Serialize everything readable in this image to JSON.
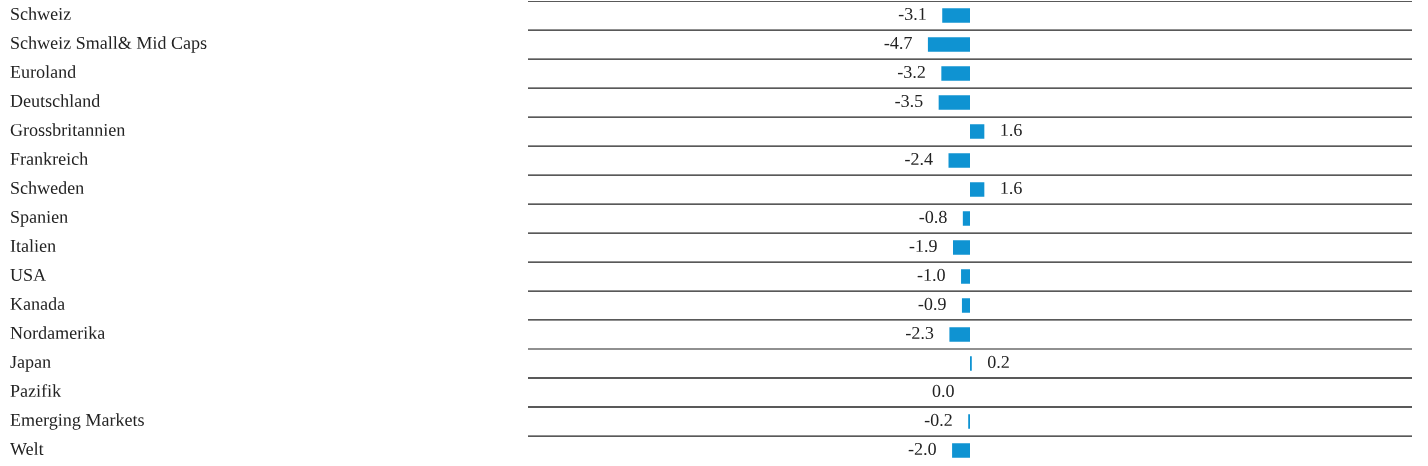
{
  "chart_data": {
    "type": "bar",
    "orientation": "horizontal",
    "categories": [
      "Schweiz",
      "Schweiz Small& Mid Caps",
      "Euroland",
      "Deutschland",
      "Grossbritannien",
      "Frankreich",
      "Schweden",
      "Spanien",
      "Italien",
      "USA",
      "Kanada",
      "Nordamerika",
      "Japan",
      "Pazifik",
      "Emerging Markets",
      "Welt"
    ],
    "values": [
      -3.1,
      -4.7,
      -3.2,
      -3.5,
      1.6,
      -2.4,
      1.6,
      -0.8,
      -1.9,
      -1.0,
      -0.9,
      -2.3,
      0.2,
      0.0,
      -0.2,
      -2.0
    ],
    "value_labels": [
      "-3.1",
      "-4.7",
      "-3.2",
      "-3.5",
      "1.6",
      "-2.4",
      "1.6",
      "-0.8",
      "-1.9",
      "-1.0",
      "-0.9",
      "-2.3",
      "0.2",
      "0.0",
      "-0.2",
      "-2.0"
    ],
    "color": "#0f93d2"
  }
}
